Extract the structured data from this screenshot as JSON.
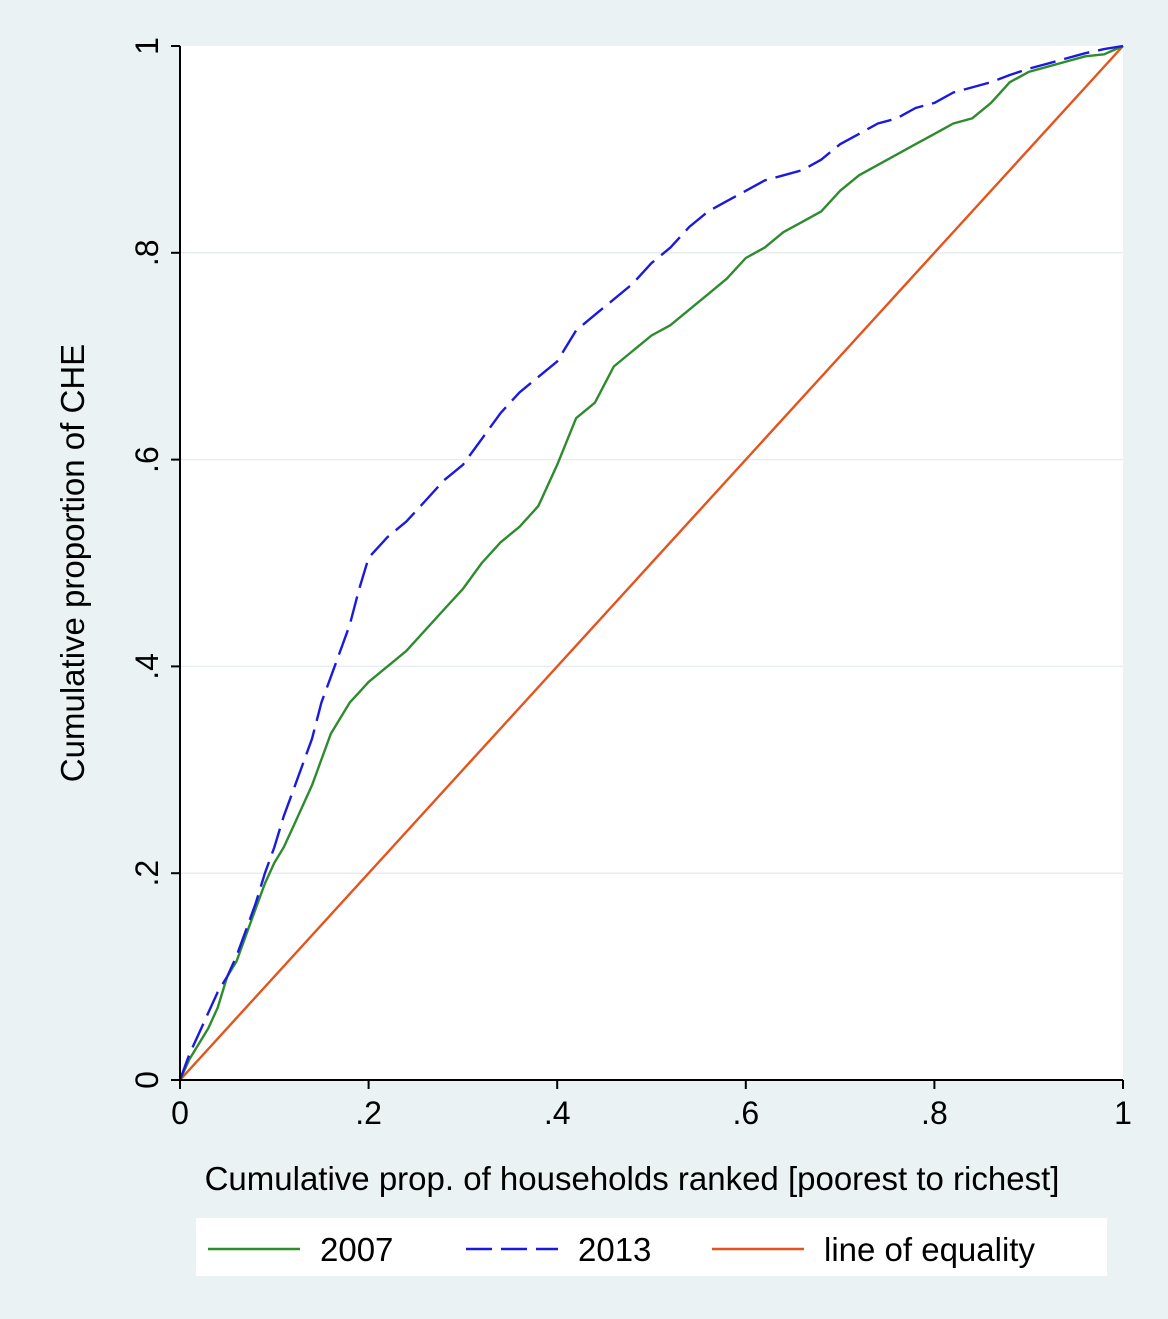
{
  "colors": {
    "outer_background": "#eaf2f3",
    "plot_background": "#ffffff",
    "grid": "#e7eef0",
    "series_2007": "#2e8b2e",
    "series_2013": "#1a1adf",
    "equality": "#e4531c",
    "axis": "#000000"
  },
  "chart_data": {
    "type": "line",
    "title": "",
    "xlabel": "Cumulative prop. of households ranked [poorest to richest]",
    "ylabel": "Cumulative proportion of CHE",
    "xlim": [
      0,
      1
    ],
    "ylim": [
      0,
      1
    ],
    "grid": true,
    "legend_position": "bottom",
    "x_ticks": [
      {
        "value": 0,
        "label": "0"
      },
      {
        "value": 0.2,
        "label": ".2"
      },
      {
        "value": 0.4,
        "label": ".4"
      },
      {
        "value": 0.6,
        "label": ".6"
      },
      {
        "value": 0.8,
        "label": ".8"
      },
      {
        "value": 1,
        "label": "1"
      }
    ],
    "y_ticks": [
      {
        "value": 0,
        "label": "0"
      },
      {
        "value": 0.2,
        "label": ".2"
      },
      {
        "value": 0.4,
        "label": ".4"
      },
      {
        "value": 0.6,
        "label": ".6"
      },
      {
        "value": 0.8,
        "label": ".8"
      },
      {
        "value": 1,
        "label": "1"
      }
    ],
    "series": [
      {
        "name": "2007",
        "dash": "solid",
        "color": "#2e8b2e",
        "points": [
          [
            0,
            0
          ],
          [
            0.01,
            0.02
          ],
          [
            0.02,
            0.035
          ],
          [
            0.03,
            0.05
          ],
          [
            0.04,
            0.07
          ],
          [
            0.05,
            0.1
          ],
          [
            0.06,
            0.115
          ],
          [
            0.07,
            0.14
          ],
          [
            0.08,
            0.165
          ],
          [
            0.09,
            0.19
          ],
          [
            0.1,
            0.21
          ],
          [
            0.11,
            0.225
          ],
          [
            0.12,
            0.245
          ],
          [
            0.13,
            0.265
          ],
          [
            0.14,
            0.285
          ],
          [
            0.15,
            0.31
          ],
          [
            0.16,
            0.335
          ],
          [
            0.17,
            0.35
          ],
          [
            0.18,
            0.365
          ],
          [
            0.19,
            0.375
          ],
          [
            0.2,
            0.385
          ],
          [
            0.22,
            0.4
          ],
          [
            0.24,
            0.415
          ],
          [
            0.26,
            0.435
          ],
          [
            0.28,
            0.455
          ],
          [
            0.3,
            0.475
          ],
          [
            0.32,
            0.5
          ],
          [
            0.34,
            0.52
          ],
          [
            0.36,
            0.535
          ],
          [
            0.38,
            0.555
          ],
          [
            0.4,
            0.595
          ],
          [
            0.42,
            0.64
          ],
          [
            0.44,
            0.655
          ],
          [
            0.46,
            0.69
          ],
          [
            0.48,
            0.705
          ],
          [
            0.5,
            0.72
          ],
          [
            0.52,
            0.73
          ],
          [
            0.54,
            0.745
          ],
          [
            0.56,
            0.76
          ],
          [
            0.58,
            0.775
          ],
          [
            0.6,
            0.795
          ],
          [
            0.62,
            0.805
          ],
          [
            0.64,
            0.82
          ],
          [
            0.66,
            0.83
          ],
          [
            0.68,
            0.84
          ],
          [
            0.7,
            0.86
          ],
          [
            0.72,
            0.875
          ],
          [
            0.74,
            0.885
          ],
          [
            0.76,
            0.895
          ],
          [
            0.78,
            0.905
          ],
          [
            0.8,
            0.915
          ],
          [
            0.82,
            0.925
          ],
          [
            0.84,
            0.93
          ],
          [
            0.86,
            0.945
          ],
          [
            0.88,
            0.965
          ],
          [
            0.9,
            0.975
          ],
          [
            0.92,
            0.98
          ],
          [
            0.94,
            0.985
          ],
          [
            0.96,
            0.99
          ],
          [
            0.98,
            0.992
          ],
          [
            1,
            1
          ]
        ]
      },
      {
        "name": "2013",
        "dash": "dashed",
        "color": "#1a1adf",
        "points": [
          [
            0,
            0
          ],
          [
            0.01,
            0.025
          ],
          [
            0.02,
            0.045
          ],
          [
            0.03,
            0.065
          ],
          [
            0.04,
            0.085
          ],
          [
            0.05,
            0.1
          ],
          [
            0.06,
            0.12
          ],
          [
            0.07,
            0.145
          ],
          [
            0.08,
            0.17
          ],
          [
            0.09,
            0.2
          ],
          [
            0.1,
            0.225
          ],
          [
            0.11,
            0.255
          ],
          [
            0.12,
            0.28
          ],
          [
            0.13,
            0.305
          ],
          [
            0.14,
            0.33
          ],
          [
            0.15,
            0.365
          ],
          [
            0.16,
            0.39
          ],
          [
            0.17,
            0.415
          ],
          [
            0.18,
            0.44
          ],
          [
            0.19,
            0.475
          ],
          [
            0.2,
            0.505
          ],
          [
            0.22,
            0.525
          ],
          [
            0.24,
            0.54
          ],
          [
            0.26,
            0.56
          ],
          [
            0.28,
            0.58
          ],
          [
            0.3,
            0.595
          ],
          [
            0.32,
            0.62
          ],
          [
            0.34,
            0.645
          ],
          [
            0.36,
            0.665
          ],
          [
            0.38,
            0.68
          ],
          [
            0.4,
            0.695
          ],
          [
            0.42,
            0.725
          ],
          [
            0.44,
            0.74
          ],
          [
            0.46,
            0.755
          ],
          [
            0.48,
            0.77
          ],
          [
            0.5,
            0.79
          ],
          [
            0.52,
            0.805
          ],
          [
            0.54,
            0.825
          ],
          [
            0.56,
            0.84
          ],
          [
            0.58,
            0.85
          ],
          [
            0.6,
            0.86
          ],
          [
            0.62,
            0.87
          ],
          [
            0.64,
            0.875
          ],
          [
            0.66,
            0.88
          ],
          [
            0.68,
            0.89
          ],
          [
            0.7,
            0.905
          ],
          [
            0.72,
            0.915
          ],
          [
            0.74,
            0.925
          ],
          [
            0.76,
            0.93
          ],
          [
            0.78,
            0.94
          ],
          [
            0.8,
            0.945
          ],
          [
            0.82,
            0.955
          ],
          [
            0.84,
            0.96
          ],
          [
            0.86,
            0.965
          ],
          [
            0.88,
            0.972
          ],
          [
            0.9,
            0.978
          ],
          [
            0.92,
            0.983
          ],
          [
            0.94,
            0.988
          ],
          [
            0.96,
            0.993
          ],
          [
            0.98,
            0.997
          ],
          [
            1,
            1
          ]
        ]
      },
      {
        "name": "line of equality",
        "dash": "solid",
        "color": "#e4531c",
        "points": [
          [
            0,
            0
          ],
          [
            1,
            1
          ]
        ]
      }
    ]
  }
}
